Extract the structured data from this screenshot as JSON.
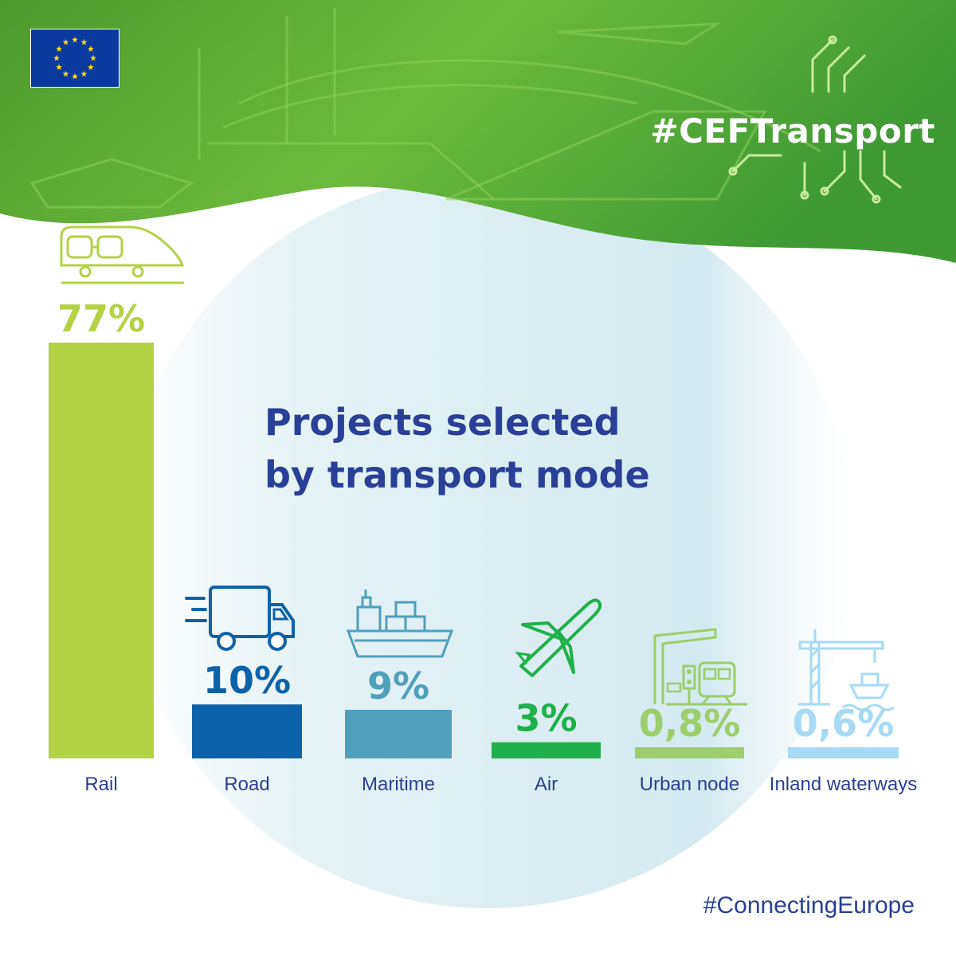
{
  "header": {
    "hashtag": "#CEFTransport"
  },
  "footer": {
    "hashtag": "#ConnectingEurope"
  },
  "chart_data": {
    "type": "bar",
    "title": "Projects selected by transport mode",
    "title_lines": [
      "Projects selected",
      "by transport mode"
    ],
    "categories": [
      "Rail",
      "Road",
      "Maritime",
      "Air",
      "Urban node",
      "Inland waterways"
    ],
    "values": [
      77,
      10,
      9,
      3,
      0.8,
      0.6
    ],
    "value_labels": [
      "77%",
      "10%",
      "9%",
      "3%",
      "0,8%",
      "0,6%"
    ],
    "icons": [
      "train-icon",
      "truck-icon",
      "ship-icon",
      "airplane-icon",
      "urban-node-icon",
      "inland-waterways-icon"
    ],
    "colors": [
      "#b3d244",
      "#0e62a9",
      "#4f9fbd",
      "#1fb04a",
      "#9dcd6c",
      "#a6daf5"
    ],
    "ylim": [
      0,
      77
    ],
    "unit": "%",
    "legend": "none",
    "grid": false
  },
  "colors": {
    "title": "#2a3f96",
    "category_label": "#2a3f96",
    "header_green": "#5fb13f",
    "circle": "#dff0f5"
  }
}
